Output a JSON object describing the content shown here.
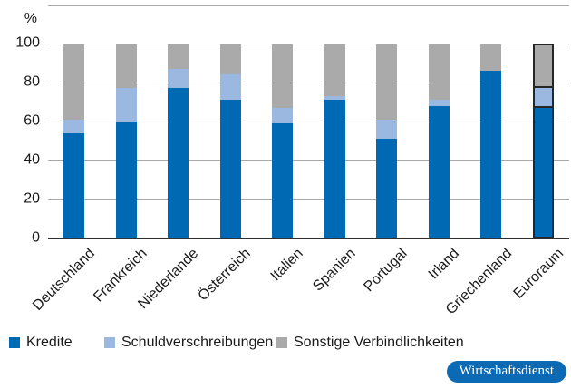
{
  "chart_data": {
    "type": "bar",
    "stacked": true,
    "title": "",
    "unit_label": "%",
    "xlabel": "",
    "ylabel": "%",
    "ylim": [
      0,
      100
    ],
    "yticks": [
      0,
      20,
      40,
      60,
      80,
      100
    ],
    "grid": true,
    "legend_position": "bottom",
    "categories": [
      "Deutschland",
      "Frankreich",
      "Niederlande",
      "Österreich",
      "Italien",
      "Spanien",
      "Portugal",
      "Irland",
      "Griechenland",
      "Euroraum"
    ],
    "series": [
      {
        "name": "Kredite",
        "color": "#0069b4",
        "values": [
          54,
          60,
          77,
          71,
          59,
          71,
          51,
          68,
          86,
          67
        ]
      },
      {
        "name": "Schuldverschreibungen",
        "color": "#9bb8e0",
        "values": [
          7,
          17,
          10,
          13,
          8,
          2,
          10,
          3,
          0,
          10
        ]
      },
      {
        "name": "Sonstige Verbindlichkeiten",
        "color": "#aaaaaa",
        "values": [
          39,
          23,
          13,
          16,
          33,
          27,
          39,
          29,
          14,
          23
        ]
      }
    ],
    "highlighted_category": "Euroraum",
    "highlight_outline_color": "#262626"
  },
  "branding": {
    "label": "Wirtschaftsdienst",
    "color": "#0b6ab3",
    "text_color": "#ffffff"
  }
}
